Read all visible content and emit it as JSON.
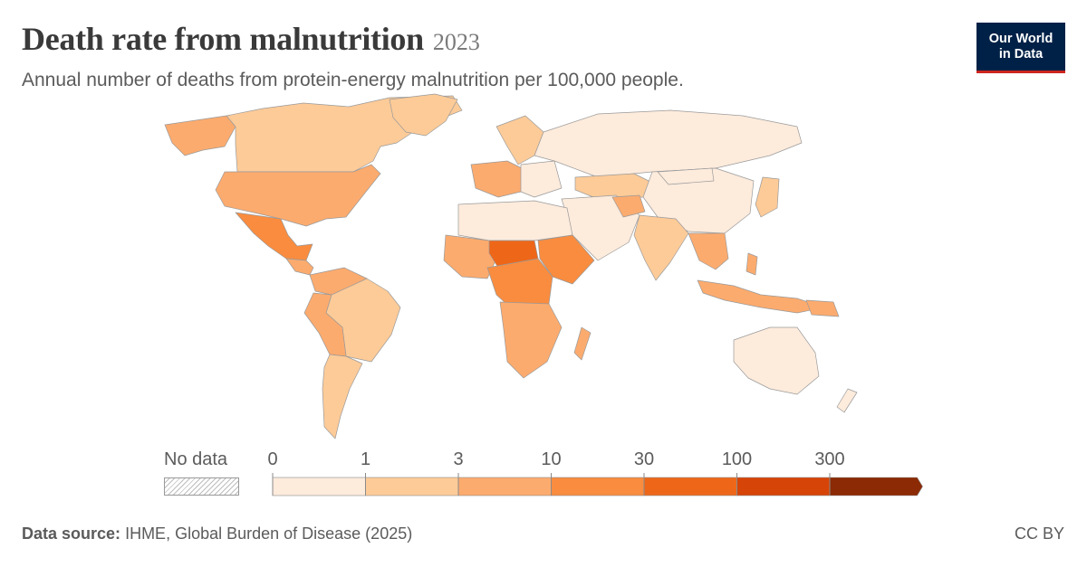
{
  "header": {
    "title": "Death rate from malnutrition",
    "year": "2023",
    "subtitle": "Annual number of deaths from protein-energy malnutrition per 100,000 people."
  },
  "logo": {
    "line1": "Our World",
    "line2": "in Data"
  },
  "legend": {
    "no_data_label": "No data",
    "ticks": [
      "0",
      "1",
      "3",
      "10",
      "30",
      "100",
      "300"
    ],
    "bin_colors": [
      "#fdebdc",
      "#fdcb98",
      "#fcab6e",
      "#f98c3f",
      "#ee6719",
      "#d74407",
      "#8b2a04"
    ]
  },
  "map_colors": {
    "ocean": "#ffffff",
    "border": "#9a9a9a",
    "hatched_no_data": "#e8e8e8"
  },
  "footer": {
    "source_label": "Data source:",
    "source_text": "IHME, Global Burden of Disease (2025)",
    "license": "CC BY"
  }
}
